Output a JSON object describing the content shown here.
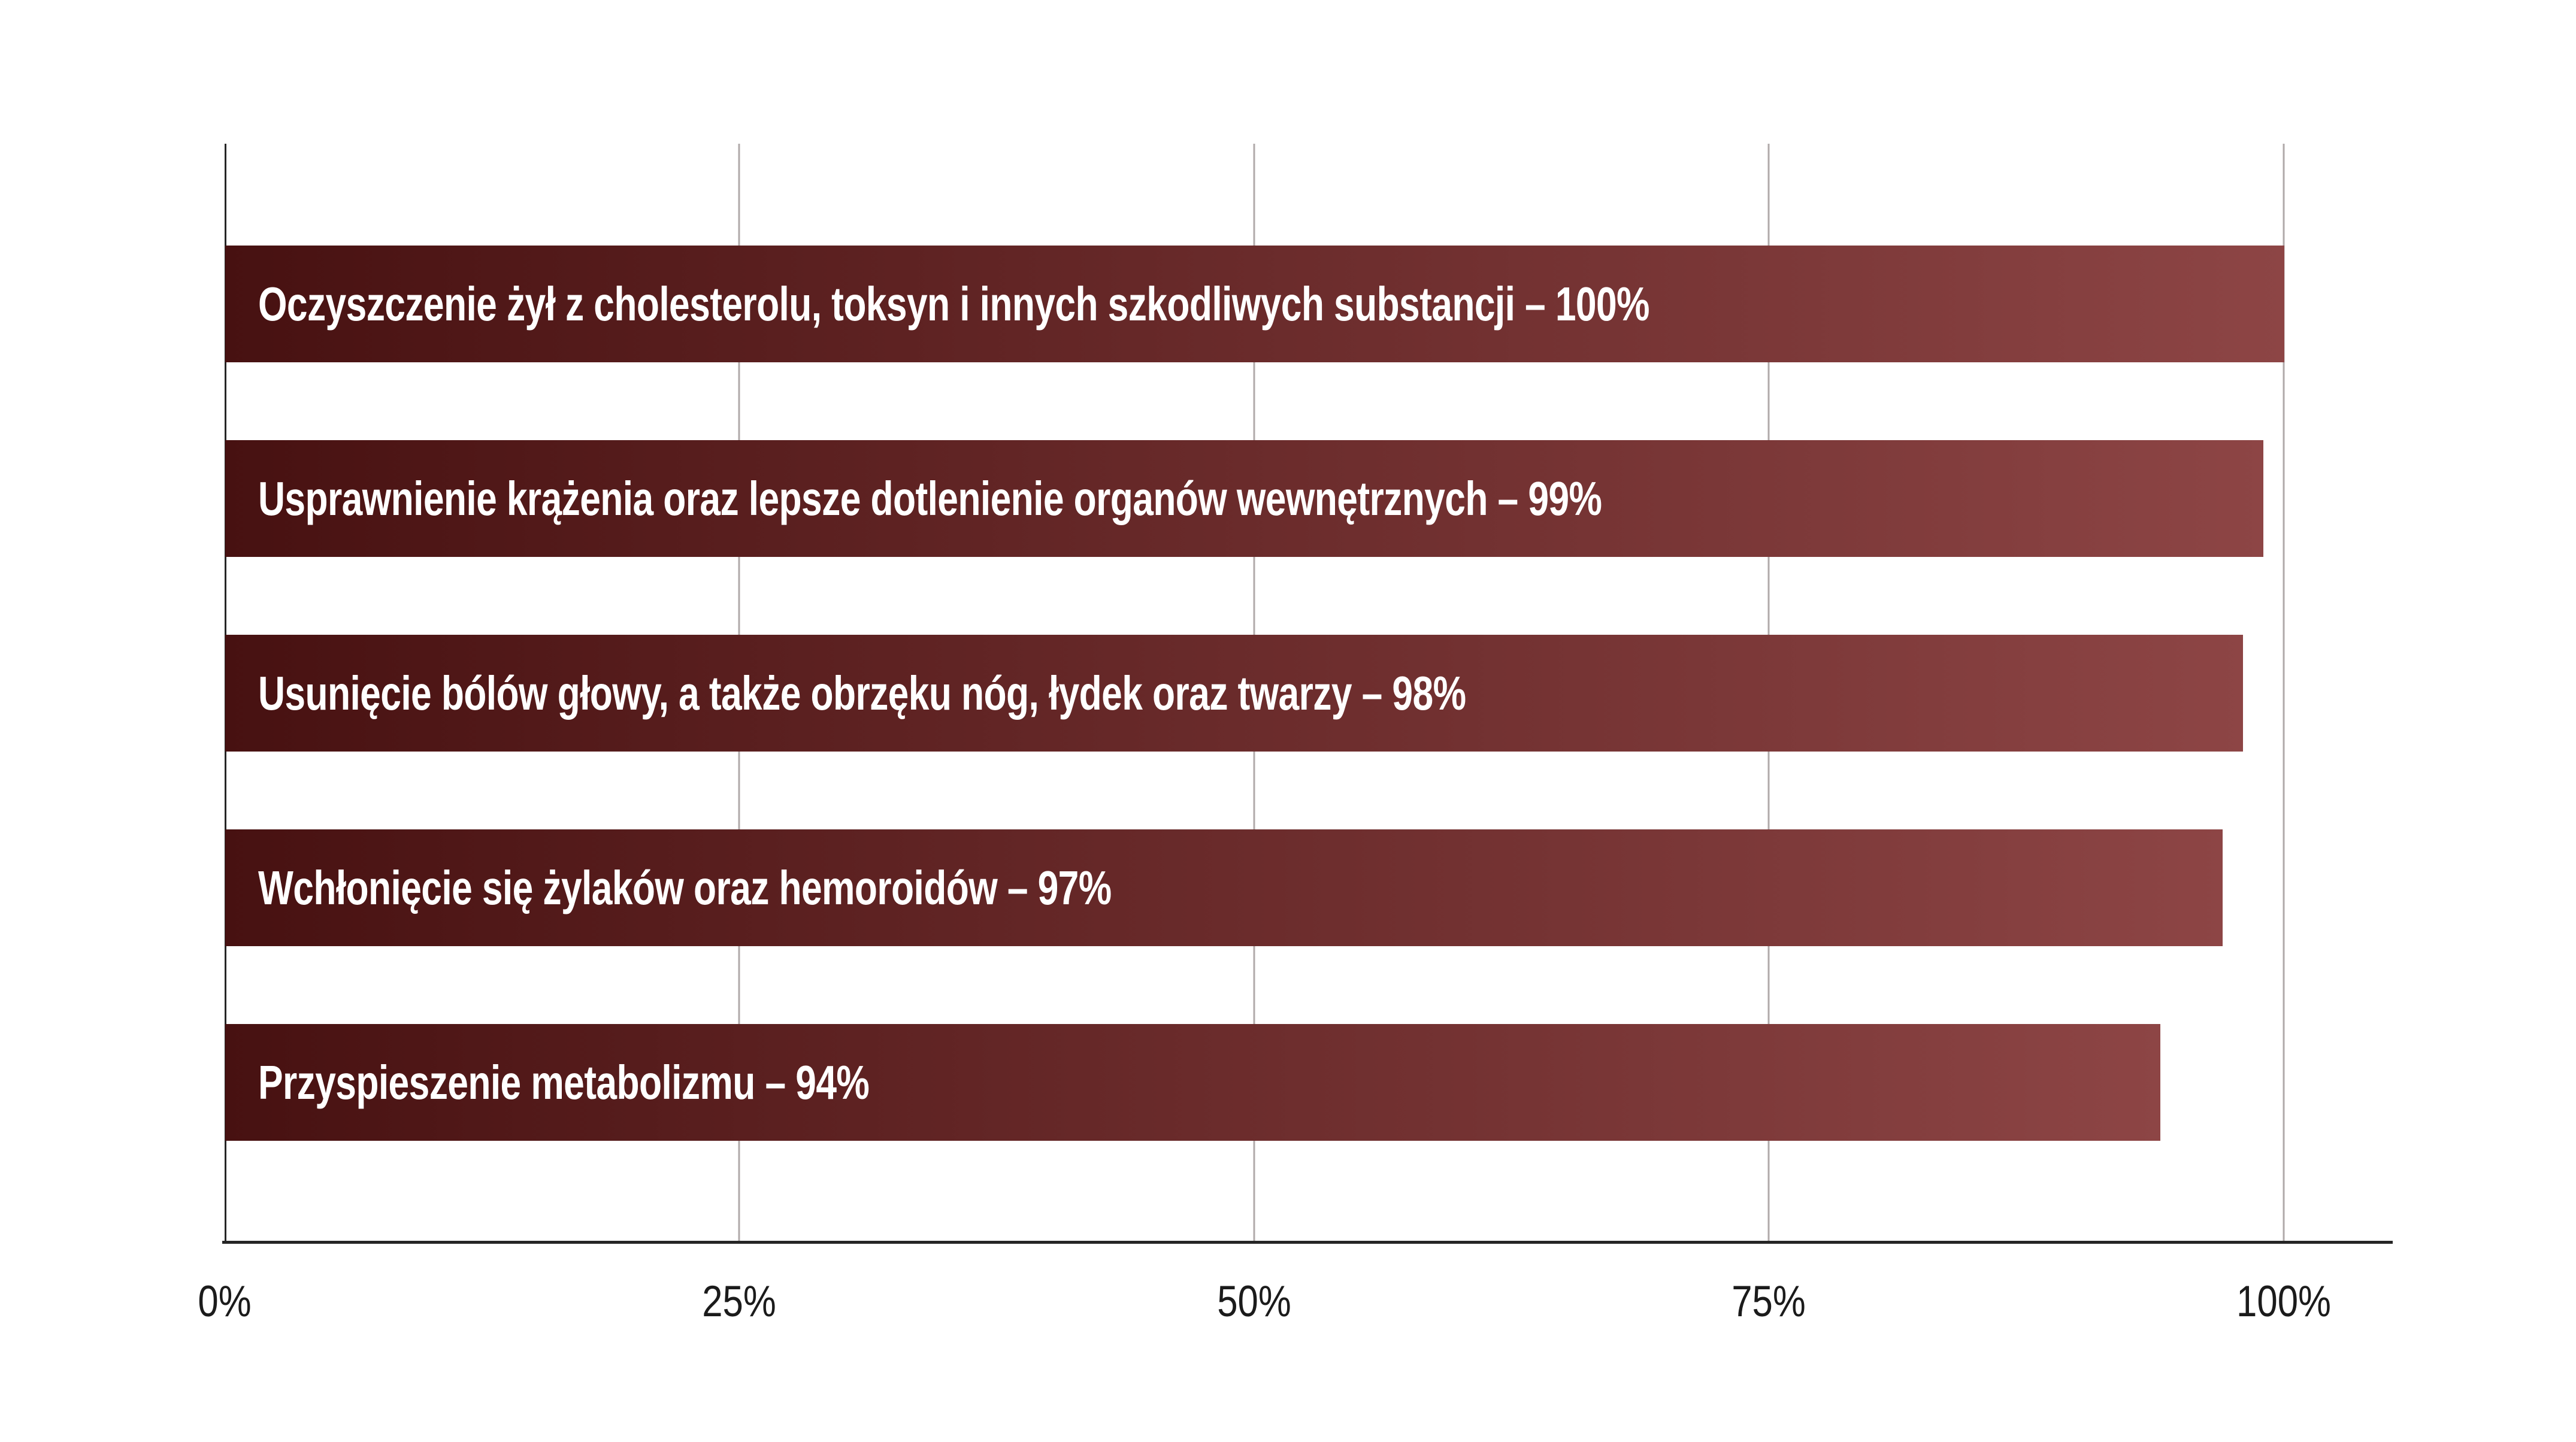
{
  "chart_data": {
    "type": "bar",
    "orientation": "horizontal",
    "title": "",
    "categories": [
      "Oczyszczenie żył z cholesterolu, toksyn i innych szkodliwych substancji",
      "Usprawnienie krążenia oraz lepsze dotlenienie organów wewnętrznych",
      "Usunięcie bólów głowy, a także obrzęku nóg, łydek oraz twarzy",
      "Wchłonięcie się żylaków oraz hemoroidów",
      "Przyspieszenie metabolizmu"
    ],
    "values": [
      100,
      99,
      98,
      97,
      94
    ],
    "bar_labels": [
      "Oczyszczenie żył z cholesterolu, toksyn i innych szkodliwych substancji – 100%",
      "Usprawnienie krążenia oraz lepsze dotlenienie organów wewnętrznych – 99%",
      "Usunięcie bólów głowy, a także obrzęku nóg, łydek oraz twarzy – 98%",
      "Wchłonięcie się żylaków oraz hemoroidów – 97%",
      "Przyspieszenie metabolizmu – 94%"
    ],
    "x_ticks": [
      {
        "label": "0%",
        "value": 0
      },
      {
        "label": "25%",
        "value": 25
      },
      {
        "label": "50%",
        "value": 50
      },
      {
        "label": "75%",
        "value": 75
      },
      {
        "label": "100%",
        "value": 100
      }
    ],
    "xlim": [
      0,
      100
    ],
    "grid": true,
    "legend_position": "none",
    "colors": {
      "bar_gradient_left": "#471111",
      "bar_gradient_right": "#8d4545",
      "bar_text": "#ffffff",
      "axis_line": "#262626",
      "gridline": "#b0aaaa",
      "tick_text": "#1b1b1b",
      "background": "#ffffff"
    },
    "layout": {
      "axis_x_percent": 8.72,
      "plot_width_percent": 79.93,
      "first_bar_top_percent": 17.03,
      "bar_pitch_percent": 13.497
    }
  }
}
